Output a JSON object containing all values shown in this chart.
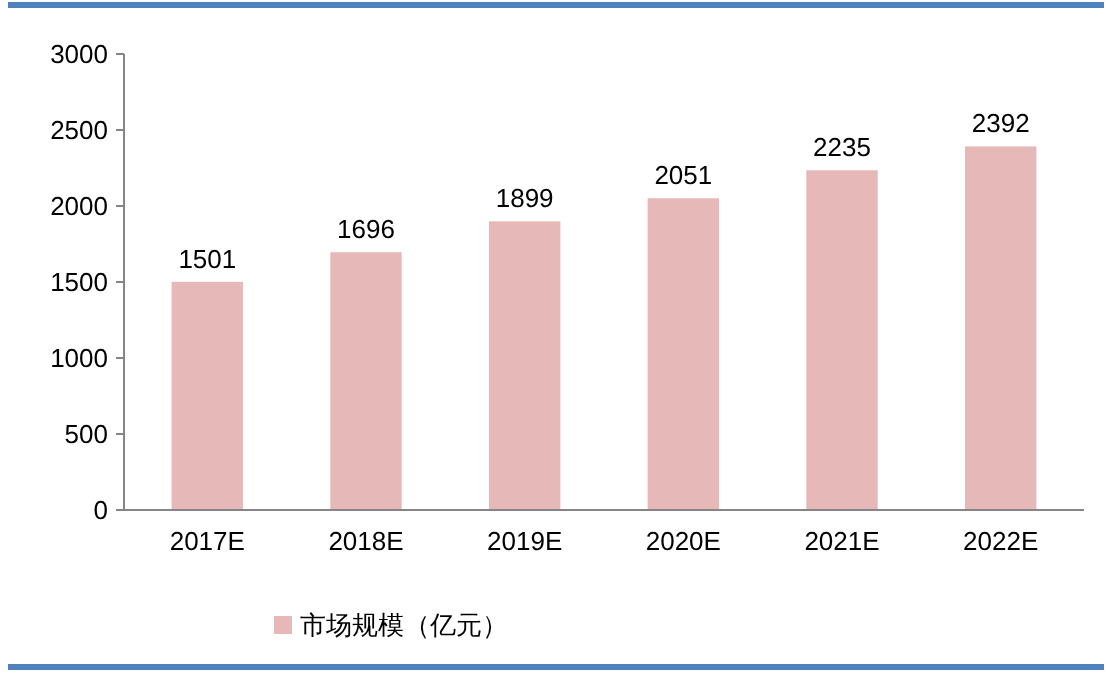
{
  "chart_data": {
    "type": "bar",
    "categories": [
      "2017E",
      "2018E",
      "2019E",
      "2020E",
      "2021E",
      "2022E"
    ],
    "series": [
      {
        "name": "市场规模（亿元）",
        "color": "#e6b9b8",
        "values": [
          1501,
          1696,
          1899,
          2051,
          2235,
          2392
        ]
      }
    ],
    "ylim": [
      0,
      3000
    ],
    "yticks": [
      0,
      500,
      1000,
      1500,
      2000,
      2500,
      3000
    ],
    "data_labels": true,
    "grid": false,
    "legend": "bottom left"
  }
}
